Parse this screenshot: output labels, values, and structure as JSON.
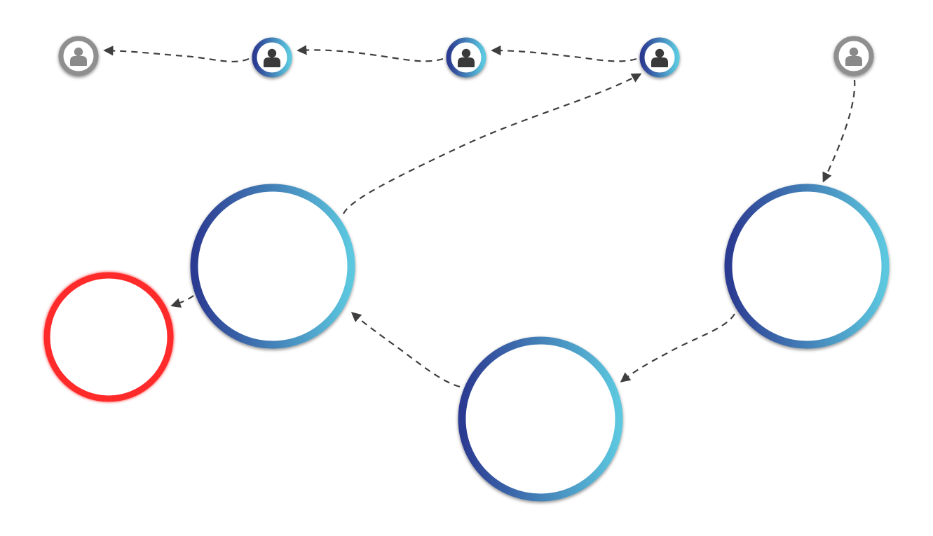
{
  "colors": {
    "background": "#ffffff",
    "ring_gradient_start": "#2b3a91",
    "ring_gradient_end": "#5cc8df",
    "inactive_ring": "#8f8f8f",
    "alert_ring": "#ff2a2a",
    "active_icon": "#3a3a3a",
    "inactive_icon": "#8a8a8a",
    "edge": "#3f3f3f"
  },
  "user_nodes": [
    {
      "id": "user-1",
      "state": "inactive",
      "icon": "user-icon"
    },
    {
      "id": "user-2",
      "state": "active",
      "icon": "user-icon"
    },
    {
      "id": "user-3",
      "state": "active",
      "icon": "user-icon"
    },
    {
      "id": "user-4",
      "state": "active",
      "icon": "user-icon"
    },
    {
      "id": "user-5",
      "state": "inactive",
      "icon": "user-icon"
    }
  ],
  "group_nodes": [
    {
      "id": "group-left",
      "state": "active"
    },
    {
      "id": "group-bottom",
      "state": "active"
    },
    {
      "id": "group-right",
      "state": "active"
    },
    {
      "id": "group-alert",
      "state": "alert"
    }
  ],
  "edges": [
    {
      "from": "user-2",
      "to": "user-1"
    },
    {
      "from": "user-3",
      "to": "user-2"
    },
    {
      "from": "user-4",
      "to": "user-3"
    },
    {
      "from": "group-left",
      "to": "user-4"
    },
    {
      "from": "user-5",
      "to": "group-right"
    },
    {
      "from": "group-right",
      "to": "group-bottom"
    },
    {
      "from": "group-bottom",
      "to": "group-left"
    },
    {
      "from": "group-left",
      "to": "group-alert"
    }
  ]
}
